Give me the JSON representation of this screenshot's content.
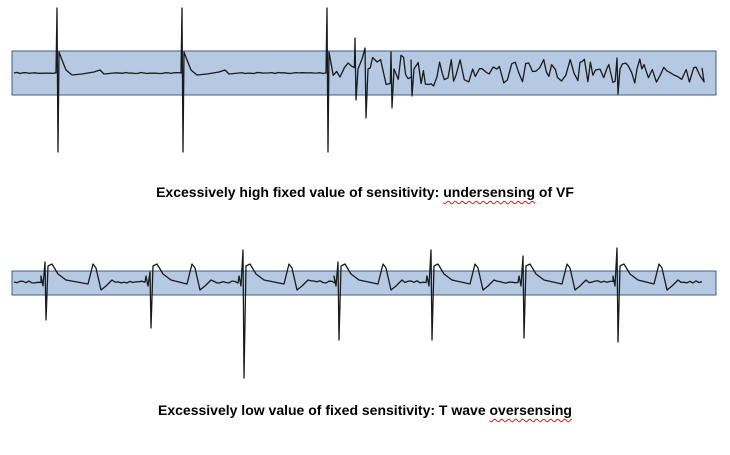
{
  "panels": [
    {
      "caption_parts": [
        {
          "text": "Excessively high fixed value of sensitivity: ",
          "flagged": false
        },
        {
          "text": "undersensing",
          "flagged": true
        },
        {
          "text": " of VF",
          "flagged": false
        }
      ]
    },
    {
      "caption_parts": [
        {
          "text": "Excessively low value of fixed sensitivity: T wave ",
          "flagged": false
        },
        {
          "text": "oversensing",
          "flagged": true
        }
      ]
    }
  ],
  "colors": {
    "band_fill": "#b5c9e2",
    "band_stroke": "#3d5f86",
    "trace": "#1a1a1a",
    "spellcheck_underline": "#d21f1f"
  }
}
